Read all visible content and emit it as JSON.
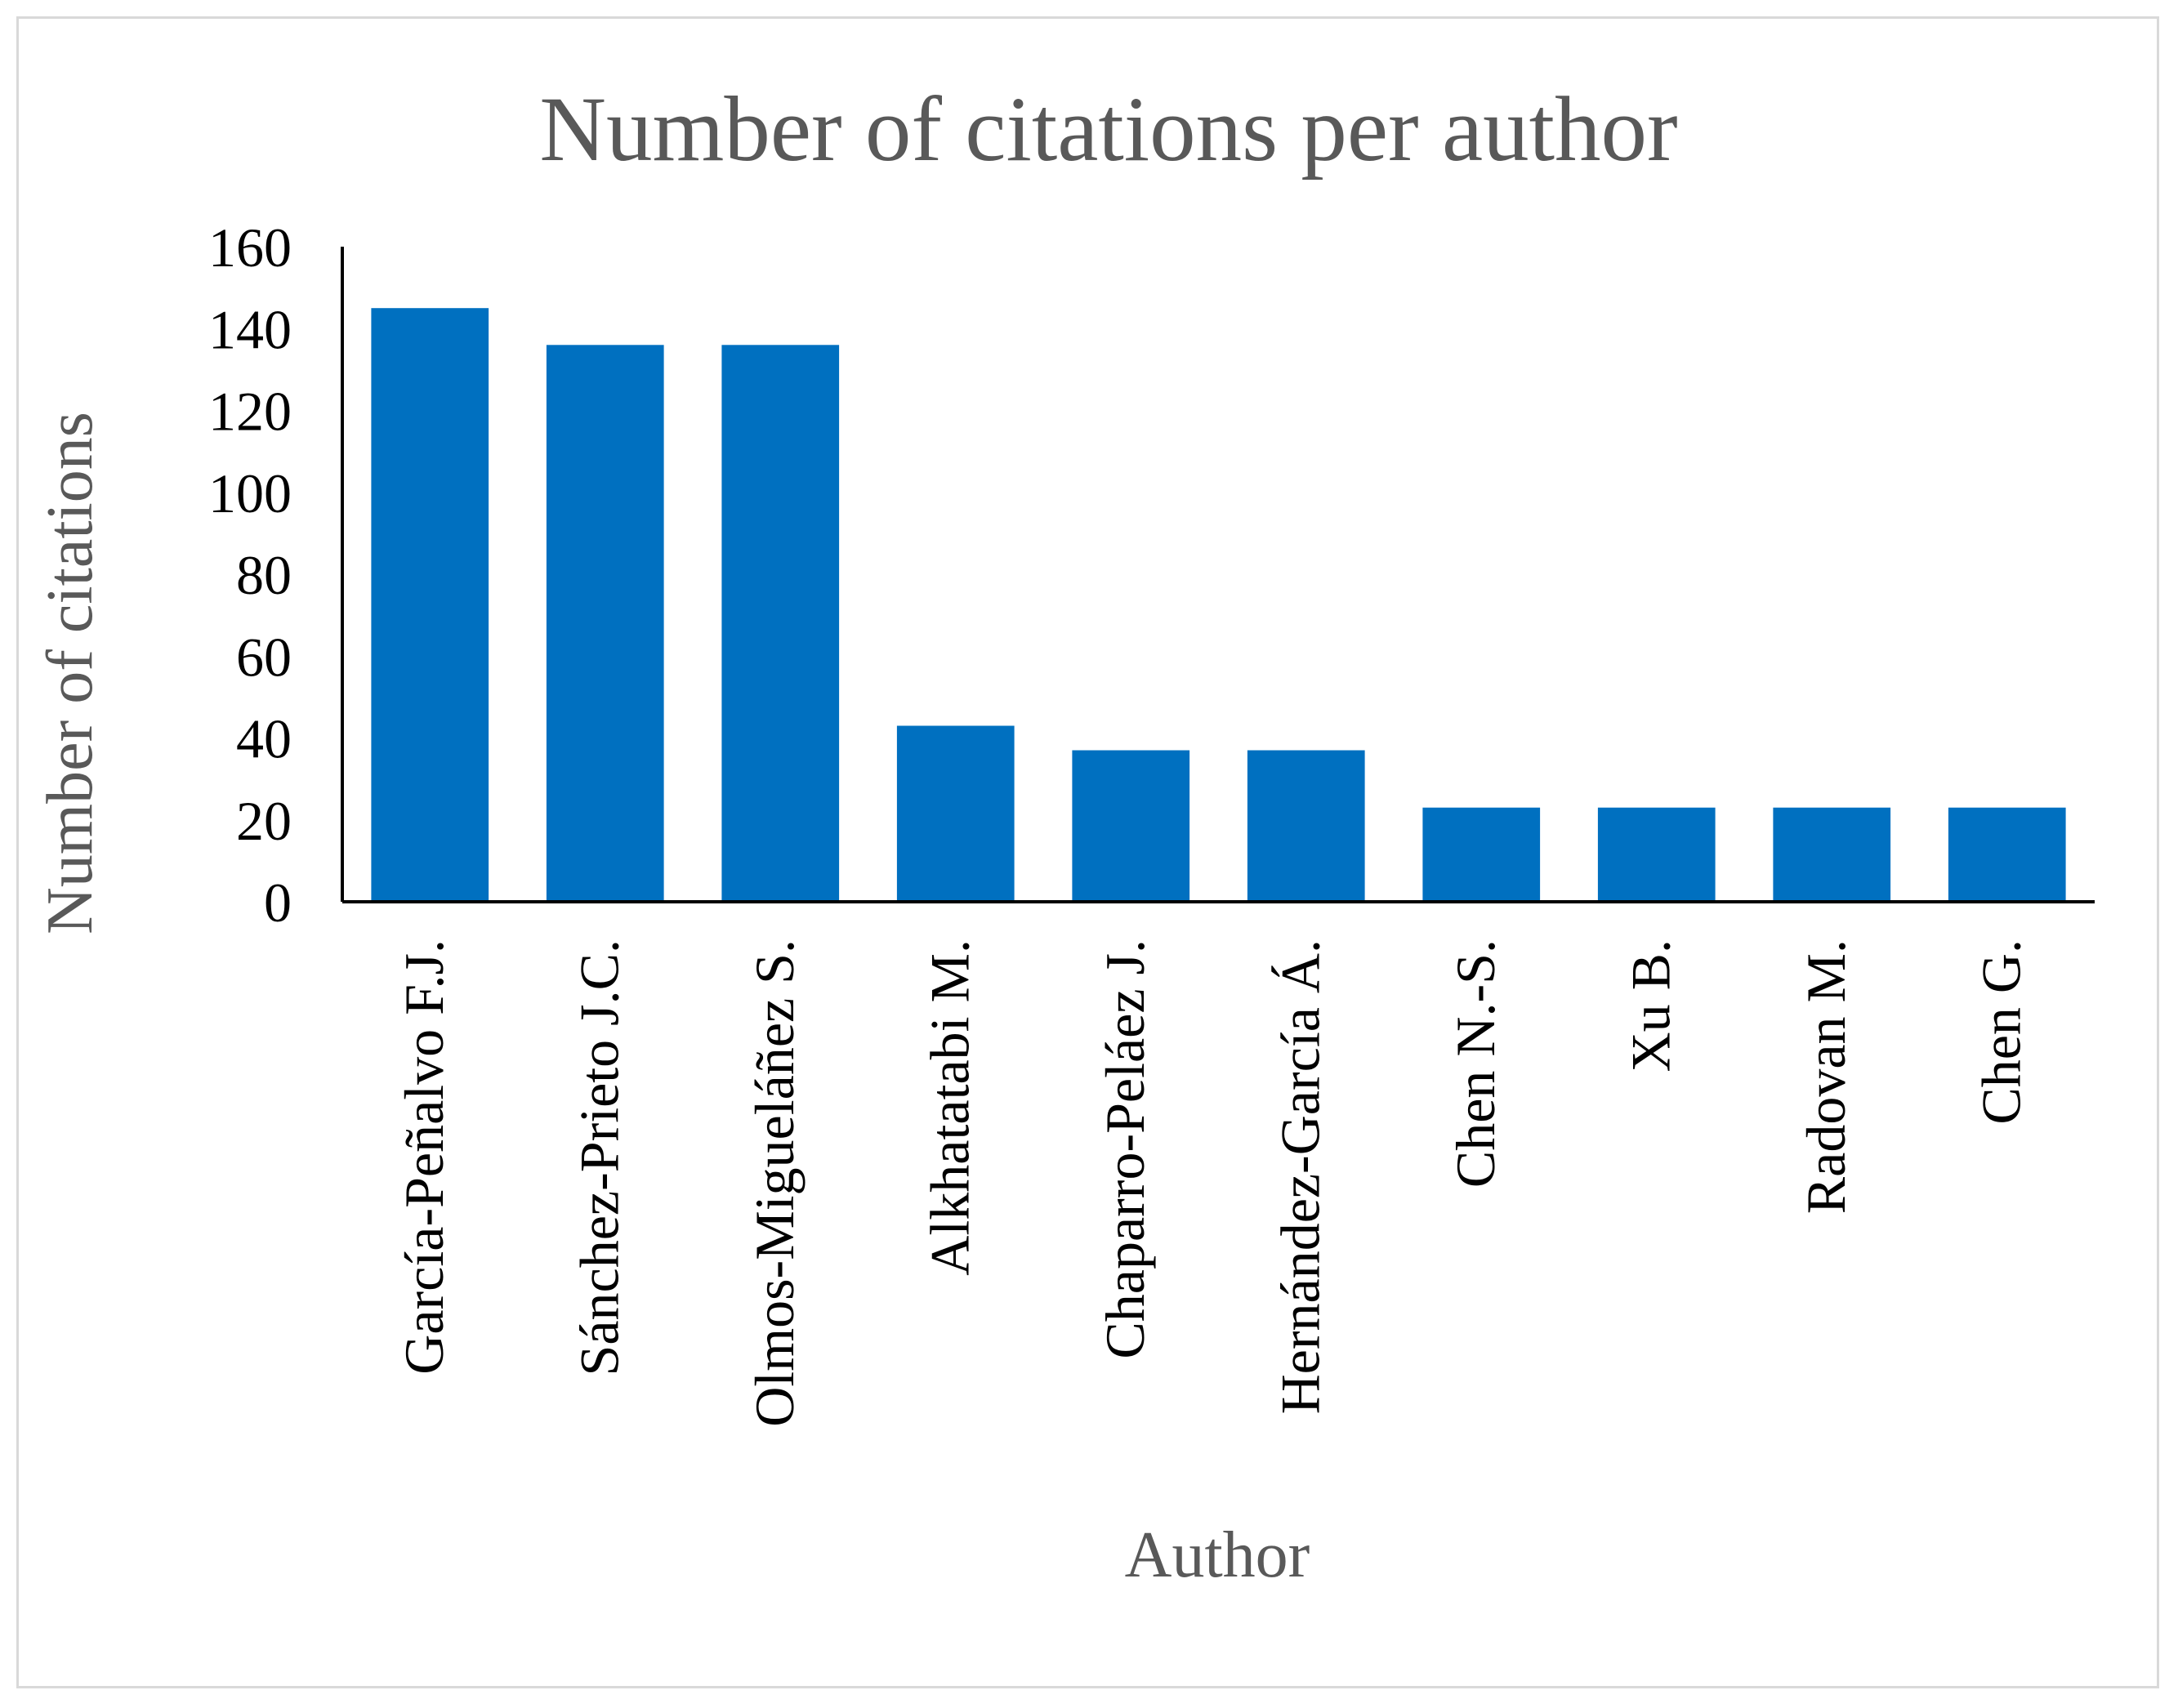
{
  "chart_data": {
    "type": "bar",
    "title": "Number of citations per author",
    "xlabel": "Author",
    "ylabel": "Number of citations",
    "ylim": [
      0,
      160
    ],
    "yticks": [
      0,
      20,
      40,
      60,
      80,
      100,
      120,
      140,
      160
    ],
    "grid": false,
    "legend": "none",
    "categories": [
      "García-Peñalvo F.J.",
      "Sánchez-Prieto J.C.",
      "Olmos-Migueláñez S.",
      "Alkhatatabi M.",
      "Chaparro-Peláez J.",
      "Hernández-García Á.",
      "Chen N.-S.",
      "Xu B.",
      "Radovan M.",
      "Chen G."
    ],
    "values": [
      145,
      136,
      136,
      43,
      37,
      37,
      23,
      23,
      23,
      23
    ],
    "bar_color": "#0070C0"
  }
}
